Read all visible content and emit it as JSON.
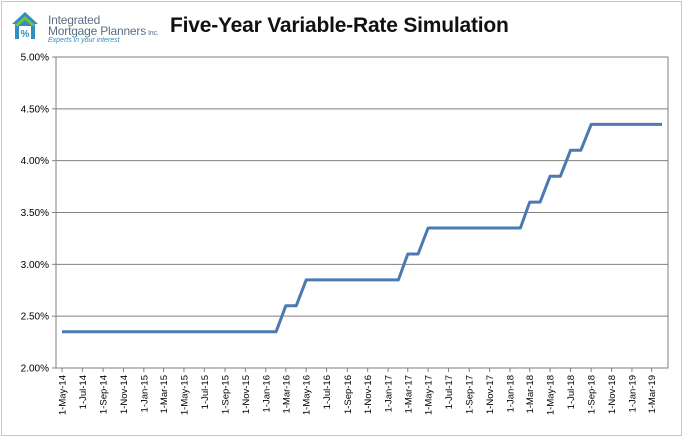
{
  "logo": {
    "icon": "house-percent-icon",
    "line1": "Integrated",
    "line2": "Mortgage Planners",
    "inc": "Inc.",
    "tagline": "Experts in your interest",
    "colors": {
      "blue": "#2f8fc0",
      "green": "#7bbf3f",
      "text": "#5a6e86"
    }
  },
  "chart_data": {
    "type": "line",
    "title": "Five-Year Variable-Rate Simulation",
    "xlabel": "",
    "ylabel": "",
    "ylim": [
      0.02,
      0.05
    ],
    "yticks": [
      "2.00%",
      "2.50%",
      "3.00%",
      "3.50%",
      "4.00%",
      "4.50%",
      "5.00%"
    ],
    "ytick_values": [
      0.02,
      0.025,
      0.03,
      0.035,
      0.04,
      0.045,
      0.05
    ],
    "grid": true,
    "legend": "none",
    "line_color": "#4a7ab0",
    "x_ticks": [
      "1-May-14",
      "1-Jul-14",
      "1-Sep-14",
      "1-Nov-14",
      "1-Jan-15",
      "1-Mar-15",
      "1-May-15",
      "1-Jul-15",
      "1-Sep-15",
      "1-Nov-15",
      "1-Jan-16",
      "1-Mar-16",
      "1-May-16",
      "1-Jul-16",
      "1-Sep-16",
      "1-Nov-16",
      "1-Jan-17",
      "1-Mar-17",
      "1-May-17",
      "1-Jul-17",
      "1-Sep-17",
      "1-Nov-17",
      "1-Jan-18",
      "1-Mar-18",
      "1-May-18",
      "1-Jul-18",
      "1-Sep-18",
      "1-Nov-18",
      "1-Jan-19",
      "1-Mar-19"
    ],
    "x_range": [
      "1-May-14",
      "1-Apr-19"
    ],
    "series": [
      {
        "x": [
          "1-May-14",
          "1-Feb-16",
          "1-Mar-16",
          "1-Apr-16",
          "1-May-16",
          "1-Feb-17",
          "1-Mar-17",
          "1-Apr-17",
          "1-May-17",
          "1-Feb-18",
          "1-Mar-18",
          "1-Apr-18",
          "1-May-18",
          "1-Jun-18",
          "1-Jul-18",
          "1-Aug-18",
          "1-Sep-18",
          "1-Oct-18",
          "1-Apr-19"
        ],
        "y": [
          0.0235,
          0.0235,
          0.026,
          0.026,
          0.0285,
          0.0285,
          0.031,
          0.031,
          0.0335,
          0.0335,
          0.036,
          0.036,
          0.0385,
          0.0385,
          0.041,
          0.041,
          0.0435,
          0.0435,
          0.0435
        ],
        "step": "post"
      }
    ]
  }
}
